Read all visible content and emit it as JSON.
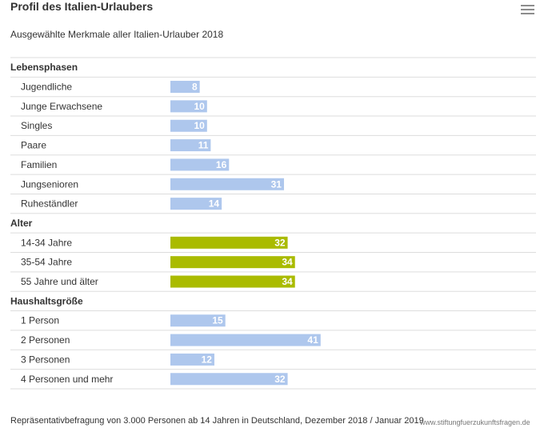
{
  "header": {
    "title": "Profil des Italien-Urlaubers",
    "subtitle": "Ausgewählte Merkmale aller Italien-Urlauber 2018"
  },
  "footer": {
    "source": "Repräsentativbefragung von 3.000 Personen ab 14 Jahren in Deutschland, Dezember 2018 / Januar 2019",
    "credit": "www.stiftungfuerzukunftsfragen.de"
  },
  "colors": {
    "blue": "#aec7ed",
    "green": "#aabb00",
    "line": "#dddddd",
    "value_label": "#ffffff"
  },
  "chart_data": {
    "type": "bar",
    "orientation": "horizontal",
    "xlim": [
      0,
      85
    ],
    "grid": false,
    "groups": [
      {
        "label": "Lebensphasen",
        "color": "blue",
        "items": [
          {
            "label": "Jugendliche",
            "value": 8
          },
          {
            "label": "Junge Erwachsene",
            "value": 10
          },
          {
            "label": "Singles",
            "value": 10
          },
          {
            "label": "Paare",
            "value": 11
          },
          {
            "label": "Familien",
            "value": 16
          },
          {
            "label": "Jungsenioren",
            "value": 31
          },
          {
            "label": "Ruheständler",
            "value": 14
          }
        ]
      },
      {
        "label": "Alter",
        "color": "green",
        "items": [
          {
            "label": "14-34 Jahre",
            "value": 32
          },
          {
            "label": "35-54 Jahre",
            "value": 34
          },
          {
            "label": "55 Jahre und älter",
            "value": 34
          }
        ]
      },
      {
        "label": "Haushaltsgröße",
        "color": "blue",
        "items": [
          {
            "label": "1 Person",
            "value": 15
          },
          {
            "label": "2 Personen",
            "value": 41
          },
          {
            "label": "3 Personen",
            "value": 12
          },
          {
            "label": "4 Personen und mehr",
            "value": 32
          }
        ]
      }
    ]
  }
}
